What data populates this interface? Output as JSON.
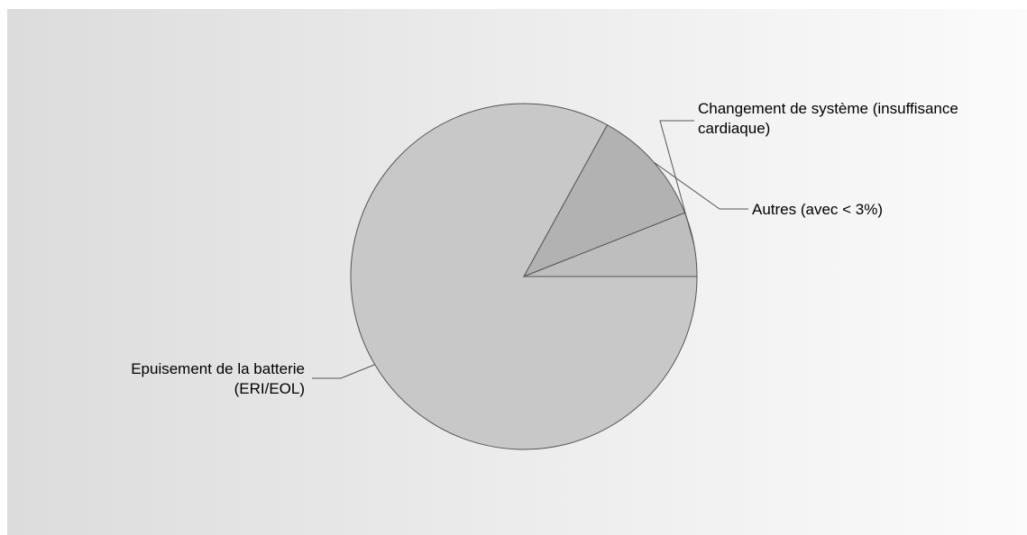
{
  "chart_data": {
    "type": "pie",
    "title": "",
    "slices": [
      {
        "label_lines": [
          "Epuisement de la batterie",
          "(ERI/EOL)"
        ],
        "value": 83,
        "color": "#c8c8c8"
      },
      {
        "label_lines": [
          "Autres (avec < 3%)"
        ],
        "value": 11,
        "color": "#b2b2b2"
      },
      {
        "label_lines": [
          "Changement de système (insuffisance",
          "cardiaque)"
        ],
        "value": 6,
        "color": "#bebebe"
      }
    ],
    "start_angle_deg": 0,
    "direction": "clockwise",
    "legend": "none",
    "stroke_color": "#555555",
    "leader_color": "#555555"
  }
}
